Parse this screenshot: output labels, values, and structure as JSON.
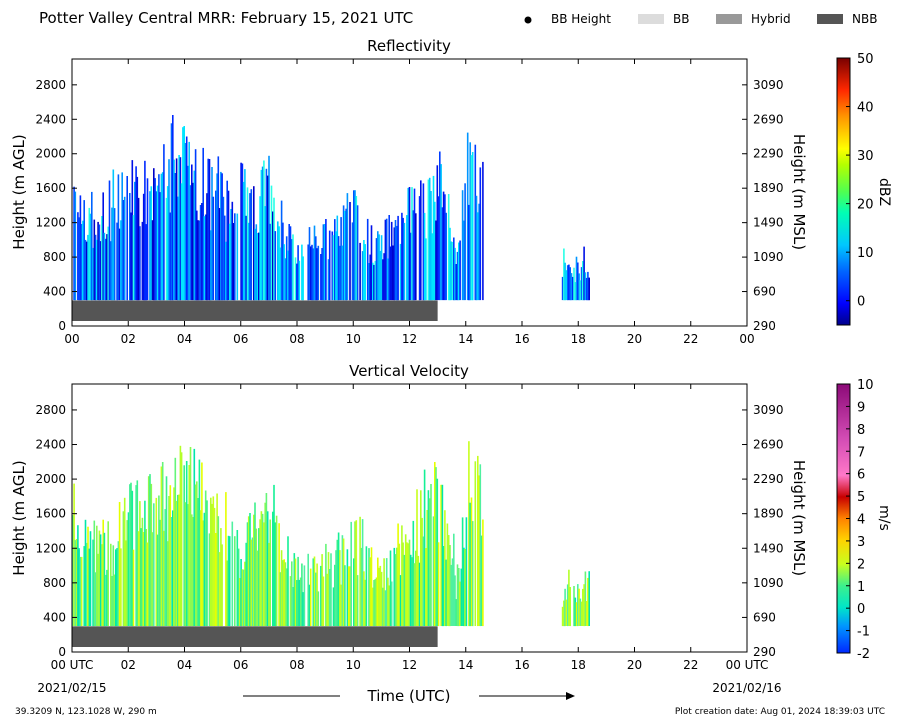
{
  "header": {
    "title": "Potter Valley Central MRR:  February 15, 2021 UTC",
    "legend": [
      {
        "label": "BB Height",
        "kind": "dot",
        "color": "#000000"
      },
      {
        "label": "BB",
        "kind": "swatch",
        "color": "#dcdcdc"
      },
      {
        "label": "Hybrid",
        "kind": "swatch",
        "color": "#999999"
      },
      {
        "label": "NBB",
        "kind": "swatch",
        "color": "#555555"
      }
    ]
  },
  "footer": {
    "location": "39.3209 N, 123.1028 W, 290 m",
    "creation_date": "Plot creation date: Aug 01, 2024 18:39:03 UTC",
    "xlabel": "Time (UTC)",
    "start_date": "2021/02/15",
    "end_date": "2021/02/16"
  },
  "chart_data": [
    {
      "type": "heatmap",
      "title": "Reflectivity",
      "ylabel": "Height (m AGL)",
      "y2label": "Height (m MSL)",
      "xlim": [
        0,
        24
      ],
      "ylim": [
        0,
        3100
      ],
      "x_ticks": [
        "00",
        "02",
        "04",
        "06",
        "08",
        "10",
        "12",
        "14",
        "16",
        "18",
        "20",
        "22",
        "00"
      ],
      "y_ticks": [
        0,
        400,
        800,
        1200,
        1600,
        2000,
        2400,
        2800
      ],
      "y2_ticks": [
        290,
        690,
        1090,
        1490,
        1890,
        2290,
        2690,
        3090
      ],
      "colorbar": {
        "label": "dBZ",
        "range": [
          -5,
          50
        ],
        "ticks": [
          0,
          10,
          20,
          30,
          40,
          50
        ]
      },
      "echo_top_m": [
        [
          0.0,
          2000
        ],
        [
          0.5,
          1400
        ],
        [
          1.0,
          1600
        ],
        [
          1.5,
          1800
        ],
        [
          2.0,
          1900
        ],
        [
          2.5,
          2100
        ],
        [
          3.0,
          2200
        ],
        [
          3.5,
          2300
        ],
        [
          4.0,
          2400
        ],
        [
          4.5,
          2000
        ],
        [
          5.0,
          2000
        ],
        [
          5.5,
          1700
        ],
        [
          6.0,
          2000
        ],
        [
          6.5,
          1700
        ],
        [
          7.0,
          2100
        ],
        [
          7.5,
          1400
        ],
        [
          8.0,
          1200
        ],
        [
          8.5,
          1200
        ],
        [
          9.0,
          1300
        ],
        [
          9.5,
          1400
        ],
        [
          10.0,
          1700
        ],
        [
          10.5,
          1300
        ],
        [
          11.0,
          1200
        ],
        [
          11.5,
          1400
        ],
        [
          12.0,
          1600
        ],
        [
          12.5,
          1800
        ],
        [
          12.9,
          2000
        ],
        [
          13.3,
          1800
        ],
        [
          13.7,
          900
        ],
        [
          14.0,
          2300
        ],
        [
          14.3,
          2400
        ],
        [
          14.6,
          2200
        ],
        [
          17.4,
          900
        ],
        [
          18.1,
          900
        ],
        [
          18.4,
          1000
        ]
      ],
      "value_range_dbz": [
        0,
        15
      ],
      "bb_type_bar": {
        "type": "NBB",
        "start_hr": 0,
        "end_hr": 13
      }
    },
    {
      "type": "heatmap",
      "title": "Vertical Velocity",
      "ylabel": "Height (m AGL)",
      "y2label": "Height (m MSL)",
      "xlim": [
        0,
        24
      ],
      "ylim": [
        0,
        3100
      ],
      "x_ticks": [
        "00 UTC",
        "02",
        "04",
        "06",
        "08",
        "10",
        "12",
        "14",
        "16",
        "18",
        "20",
        "22",
        "00 UTC"
      ],
      "y_ticks": [
        0,
        400,
        800,
        1200,
        1600,
        2000,
        2400,
        2800
      ],
      "y2_ticks": [
        290,
        690,
        1090,
        1490,
        1890,
        2290,
        2690,
        3090
      ],
      "colorbar": {
        "label": "m/s",
        "range": [
          -2,
          10
        ],
        "ticks": [
          -2,
          -1,
          0,
          1,
          2,
          3,
          4,
          5,
          6,
          7,
          8,
          9,
          10
        ]
      },
      "echo_top_m": [
        [
          0.0,
          2100
        ],
        [
          0.5,
          1600
        ],
        [
          1.0,
          1600
        ],
        [
          1.5,
          1500
        ],
        [
          2.0,
          2000
        ],
        [
          2.5,
          2300
        ],
        [
          3.0,
          2300
        ],
        [
          3.5,
          2300
        ],
        [
          4.0,
          2500
        ],
        [
          4.5,
          2400
        ],
        [
          5.0,
          2000
        ],
        [
          5.5,
          1800
        ],
        [
          6.0,
          1500
        ],
        [
          6.5,
          1900
        ],
        [
          7.0,
          2000
        ],
        [
          7.5,
          1400
        ],
        [
          8.0,
          1200
        ],
        [
          8.5,
          1200
        ],
        [
          9.0,
          1300
        ],
        [
          9.5,
          1300
        ],
        [
          10.0,
          1700
        ],
        [
          10.5,
          1300
        ],
        [
          11.0,
          1200
        ],
        [
          11.5,
          1400
        ],
        [
          12.0,
          1600
        ],
        [
          12.5,
          2000
        ],
        [
          12.9,
          2200
        ],
        [
          13.3,
          1900
        ],
        [
          13.7,
          900
        ],
        [
          14.0,
          2300
        ],
        [
          14.3,
          2400
        ],
        [
          14.6,
          2200
        ],
        [
          17.4,
          900
        ],
        [
          18.1,
          900
        ],
        [
          18.4,
          1000
        ]
      ],
      "value_range_ms": [
        0.5,
        2.5
      ],
      "bb_type_bar": {
        "type": "NBB",
        "start_hr": 0,
        "end_hr": 13
      }
    }
  ]
}
